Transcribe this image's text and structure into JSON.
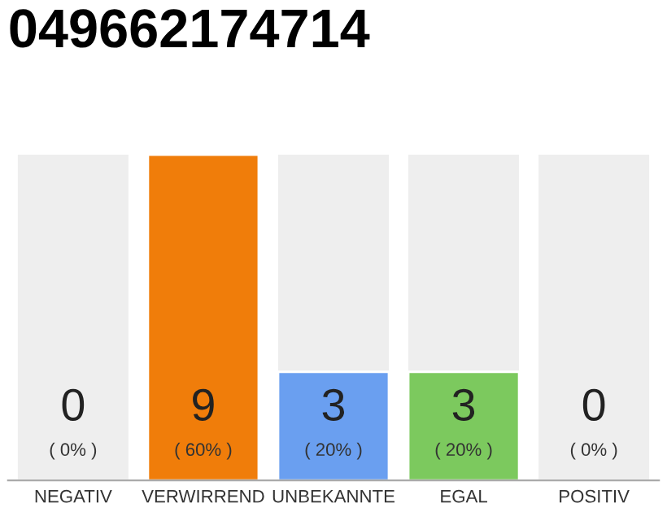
{
  "chart_data": {
    "type": "bar",
    "title": "049662174714",
    "categories": [
      "NEGATIV",
      "VERWIRREND",
      "UNBEKANNTE",
      "EGAL",
      "POSITIV"
    ],
    "values": [
      0,
      9,
      3,
      3,
      0
    ],
    "colors": [
      null,
      "#f07d0a",
      "#6a9ff0",
      "#7cc95e",
      null
    ],
    "value_labels": [
      "0\n( 0% )",
      "9\n( 60% )",
      "3\n( 20% )",
      "3\n( 20% )",
      "0\n( 0% )"
    ],
    "grid": false,
    "legend": false
  }
}
